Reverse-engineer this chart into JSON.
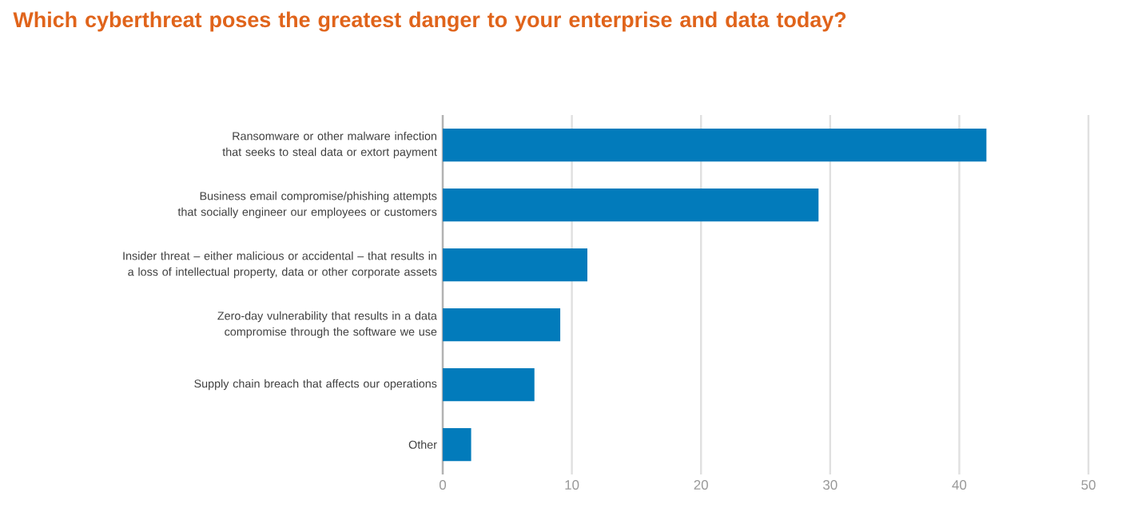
{
  "chart_data": {
    "type": "bar",
    "orientation": "horizontal",
    "title": "Which cyberthreat poses the greatest danger to your enterprise and data today?",
    "categories": [
      "Ransomware or other malware infection that seeks to steal data or extort payment",
      "Business email compromise/phishing attempts that socially engineer our employees or customers",
      "Insider threat – either malicious or accidental – that results in a loss of intellectual property, data or other corporate assets",
      "Zero-day vulnerability that results in a data compromise through the software we use",
      "Supply chain breach that affects our operations",
      "Other"
    ],
    "values": [
      42.1,
      29.1,
      11.2,
      9.1,
      7.1,
      2.2
    ],
    "color": "#027bbb",
    "xlim": [
      0,
      50
    ],
    "xticks": [
      0,
      10,
      20,
      30,
      40,
      50
    ],
    "grid": "x"
  }
}
